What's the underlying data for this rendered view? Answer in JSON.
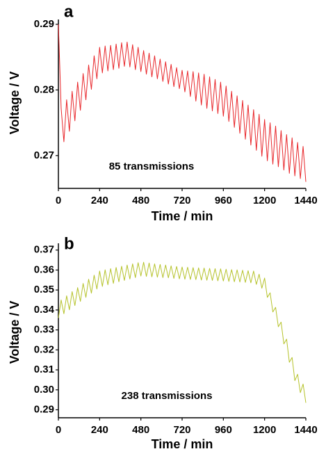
{
  "chart_data": [
    {
      "type": "line",
      "title": "a",
      "annotation": "85 transmissions",
      "xlabel": "Time / min",
      "ylabel": "Voltage / V",
      "x": [
        0,
        16,
        32,
        48,
        64,
        80,
        96,
        112,
        128,
        144,
        160,
        176,
        192,
        208,
        224,
        240,
        256,
        272,
        288,
        304,
        320,
        336,
        352,
        368,
        384,
        400,
        416,
        432,
        448,
        464,
        480,
        496,
        512,
        528,
        544,
        560,
        576,
        592,
        608,
        624,
        640,
        656,
        672,
        688,
        704,
        720,
        736,
        752,
        768,
        784,
        800,
        816,
        832,
        848,
        864,
        880,
        896,
        912,
        928,
        944,
        960,
        976,
        992,
        1008,
        1024,
        1040,
        1056,
        1072,
        1088,
        1104,
        1120,
        1136,
        1152,
        1168,
        1184,
        1200,
        1216,
        1232,
        1248,
        1264,
        1280,
        1296,
        1312,
        1328,
        1344,
        1360,
        1376,
        1392,
        1408,
        1424,
        1440
      ],
      "series": [
        {
          "name": "85 transmissions",
          "color": "#e8262a",
          "values": [
            0.29,
            0.2772,
            0.2721,
            0.2785,
            0.2737,
            0.2798,
            0.2753,
            0.2812,
            0.2769,
            0.2825,
            0.2785,
            0.2838,
            0.2801,
            0.2852,
            0.2817,
            0.2865,
            0.2826,
            0.2867,
            0.2829,
            0.2868,
            0.2831,
            0.287,
            0.2833,
            0.2872,
            0.2836,
            0.2873,
            0.2835,
            0.2869,
            0.2831,
            0.2865,
            0.2828,
            0.286,
            0.2824,
            0.2856,
            0.282,
            0.2852,
            0.2817,
            0.2847,
            0.2813,
            0.2843,
            0.2809,
            0.2839,
            0.2805,
            0.2834,
            0.2802,
            0.283,
            0.2797,
            0.2829,
            0.279,
            0.2828,
            0.2783,
            0.2826,
            0.2777,
            0.2824,
            0.2772,
            0.282,
            0.2768,
            0.2816,
            0.2764,
            0.2812,
            0.276,
            0.2806,
            0.2752,
            0.2798,
            0.2743,
            0.2791,
            0.2734,
            0.2784,
            0.2725,
            0.2777,
            0.2716,
            0.277,
            0.2708,
            0.2763,
            0.2699,
            0.2755,
            0.2692,
            0.275,
            0.2687,
            0.2745,
            0.2683,
            0.2738,
            0.2678,
            0.2732,
            0.2673,
            0.2727,
            0.2669,
            0.272,
            0.2665,
            0.2714,
            0.266
          ]
        }
      ],
      "xlim": [
        0,
        1440
      ],
      "xticks": [
        0,
        240,
        480,
        720,
        960,
        1200,
        1440
      ],
      "ylim": [
        0.265,
        0.29
      ],
      "yticks": [
        0.27,
        0.28,
        0.29
      ]
    },
    {
      "type": "line",
      "title": "b",
      "annotation": "238 transmissions",
      "xlabel": "Time / min",
      "ylabel": "Voltage / V",
      "x": [
        0,
        16,
        32,
        48,
        64,
        80,
        96,
        112,
        128,
        144,
        160,
        176,
        192,
        208,
        224,
        240,
        256,
        272,
        288,
        304,
        320,
        336,
        352,
        368,
        384,
        400,
        416,
        432,
        448,
        464,
        480,
        496,
        512,
        528,
        544,
        560,
        576,
        592,
        608,
        624,
        640,
        656,
        672,
        688,
        704,
        720,
        736,
        752,
        768,
        784,
        800,
        816,
        832,
        848,
        864,
        880,
        896,
        912,
        928,
        944,
        960,
        976,
        992,
        1008,
        1024,
        1040,
        1056,
        1072,
        1088,
        1104,
        1120,
        1136,
        1152,
        1168,
        1184,
        1200,
        1216,
        1232,
        1248,
        1264,
        1280,
        1296,
        1312,
        1328,
        1344,
        1360,
        1376,
        1392,
        1408,
        1424,
        1440
      ],
      "series": [
        {
          "name": "238 transmissions",
          "color": "#b5c22a",
          "values": [
            0.336,
            0.345,
            0.3381,
            0.3471,
            0.3401,
            0.3492,
            0.3422,
            0.3512,
            0.3443,
            0.3533,
            0.3463,
            0.3554,
            0.3484,
            0.3574,
            0.3505,
            0.3595,
            0.3518,
            0.3601,
            0.3526,
            0.3607,
            0.3533,
            0.3613,
            0.3541,
            0.3619,
            0.3548,
            0.3625,
            0.3555,
            0.3631,
            0.3562,
            0.3637,
            0.357,
            0.3639,
            0.3568,
            0.3635,
            0.3566,
            0.3631,
            0.3564,
            0.3628,
            0.3562,
            0.3625,
            0.3561,
            0.3621,
            0.3558,
            0.3618,
            0.3556,
            0.3615,
            0.3554,
            0.3614,
            0.3553,
            0.3612,
            0.3552,
            0.3611,
            0.355,
            0.361,
            0.3549,
            0.3608,
            0.3548,
            0.3607,
            0.3546,
            0.3606,
            0.3545,
            0.3604,
            0.3543,
            0.3602,
            0.3541,
            0.3601,
            0.354,
            0.3599,
            0.3538,
            0.3597,
            0.3536,
            0.3595,
            0.3528,
            0.3579,
            0.3509,
            0.356,
            0.3463,
            0.3486,
            0.339,
            0.3413,
            0.3316,
            0.3339,
            0.323,
            0.3254,
            0.3138,
            0.3162,
            0.3046,
            0.3078,
            0.2986,
            0.3029,
            0.2935
          ]
        }
      ],
      "xlim": [
        0,
        1440
      ],
      "xticks": [
        0,
        240,
        480,
        720,
        960,
        1200,
        1440
      ],
      "ylim": [
        0.286,
        0.372
      ],
      "yticks": [
        0.29,
        {
          "value": 0.3,
          "label": "0.30"
        },
        0.31,
        0.32,
        0.33,
        0.34,
        0.35,
        0.36,
        0.37
      ]
    }
  ]
}
